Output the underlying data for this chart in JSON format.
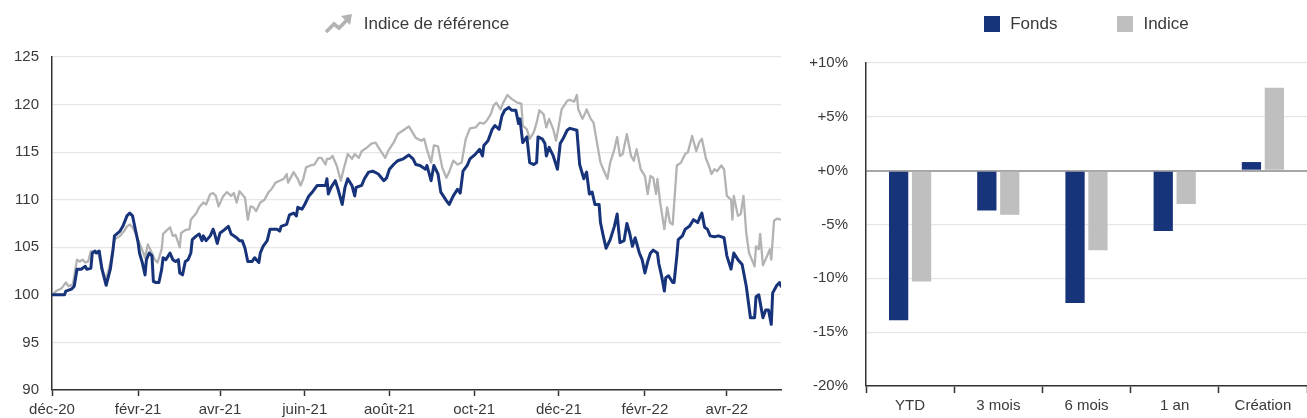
{
  "chart_data": [
    {
      "type": "line",
      "xlim": [
        "2020-12-01",
        "2022-05-10"
      ],
      "xticks": [
        {
          "value": "2020-12-01",
          "label": "déc-20"
        },
        {
          "value": "2021-02-01",
          "label": "févr-21"
        },
        {
          "value": "2021-04-01",
          "label": "avr-21"
        },
        {
          "value": "2021-06-01",
          "label": "juin-21"
        },
        {
          "value": "2021-08-01",
          "label": "août-21"
        },
        {
          "value": "2021-10-01",
          "label": "oct-21"
        },
        {
          "value": "2021-12-01",
          "label": "déc-21"
        },
        {
          "value": "2022-02-01",
          "label": "févr-22"
        },
        {
          "value": "2022-04-01",
          "label": "avr-22"
        }
      ],
      "ylim": [
        90,
        125
      ],
      "yticks": [
        90,
        95,
        100,
        105,
        110,
        115,
        120,
        125
      ],
      "grid": "y",
      "legend": "top",
      "series": [
        {
          "color": "#17337a",
          "x": [
            "2020-12-01",
            "2020-12-10",
            "2020-12-11",
            "2020-12-15",
            "2020-12-17",
            "2020-12-19",
            "2020-12-22",
            "2020-12-25",
            "2020-12-26",
            "2020-12-29",
            "2020-12-30",
            "2021-01-01",
            "2021-01-02",
            "2021-01-04",
            "2021-01-06",
            "2021-01-09",
            "2021-01-12",
            "2021-01-14",
            "2021-01-15",
            "2021-01-19",
            "2021-01-21",
            "2021-01-24",
            "2021-01-26",
            "2021-01-28",
            "2021-01-30",
            "2021-02-01",
            "2021-02-02",
            "2021-02-04",
            "2021-02-06",
            "2021-02-07",
            "2021-02-09",
            "2021-02-11",
            "2021-02-12",
            "2021-02-14",
            "2021-02-16",
            "2021-02-18",
            "2021-02-19",
            "2021-02-21",
            "2021-02-24",
            "2021-02-26",
            "2021-02-28",
            "2021-03-02",
            "2021-03-03",
            "2021-03-05",
            "2021-03-07",
            "2021-03-09",
            "2021-03-11",
            "2021-03-12",
            "2021-03-15",
            "2021-03-17",
            "2021-03-19",
            "2021-03-20",
            "2021-03-22",
            "2021-03-25",
            "2021-03-27",
            "2021-03-28",
            "2021-03-30",
            "2021-04-01",
            "2021-04-03",
            "2021-04-07",
            "2021-04-09",
            "2021-04-13",
            "2021-04-15",
            "2021-04-17",
            "2021-04-19",
            "2021-04-21",
            "2021-04-24",
            "2021-04-26",
            "2021-04-29",
            "2021-04-30",
            "2021-05-02",
            "2021-05-05",
            "2021-05-07",
            "2021-05-12",
            "2021-05-14",
            "2021-05-15",
            "2021-05-19",
            "2021-05-21",
            "2021-05-24",
            "2021-05-26",
            "2021-05-27",
            "2021-05-30",
            "2021-06-01",
            "2021-06-04",
            "2021-06-07",
            "2021-06-10",
            "2021-06-13",
            "2021-06-16",
            "2021-06-17",
            "2021-06-18",
            "2021-06-20",
            "2021-06-23",
            "2021-06-25",
            "2021-06-28",
            "2021-06-30",
            "2021-07-02",
            "2021-07-05",
            "2021-07-07",
            "2021-07-08",
            "2021-07-12",
            "2021-07-14",
            "2021-07-17",
            "2021-07-20",
            "2021-07-24",
            "2021-07-28",
            "2021-07-30",
            "2021-08-01",
            "2021-08-04",
            "2021-08-07",
            "2021-08-11",
            "2021-08-15",
            "2021-08-18",
            "2021-08-20",
            "2021-08-23",
            "2021-08-27",
            "2021-08-28",
            "2021-08-31",
            "2021-09-02",
            "2021-09-05",
            "2021-09-07",
            "2021-09-11",
            "2021-09-13",
            "2021-09-16",
            "2021-09-19",
            "2021-09-21",
            "2021-09-23",
            "2021-09-26",
            "2021-09-28",
            "2021-10-02",
            "2021-10-05",
            "2021-10-07",
            "2021-10-08",
            "2021-10-11",
            "2021-10-14",
            "2021-10-16",
            "2021-10-19",
            "2021-10-21",
            "2021-10-23",
            "2021-10-26",
            "2021-10-28",
            "2021-10-31",
            "2021-11-02",
            "2021-11-03",
            "2021-11-05",
            "2021-11-08",
            "2021-11-10",
            "2021-11-13",
            "2021-11-15",
            "2021-11-16",
            "2021-11-19",
            "2021-11-21",
            "2021-11-22",
            "2021-11-24",
            "2021-11-27",
            "2021-11-30",
            "2021-12-02",
            "2021-12-04",
            "2021-12-07",
            "2021-12-09",
            "2021-12-14",
            "2021-12-16",
            "2021-12-19",
            "2021-12-21",
            "2021-12-23",
            "2021-12-25",
            "2021-12-27",
            "2021-12-30",
            "2021-12-31",
            "2022-01-02",
            "2022-01-04",
            "2022-01-07",
            "2022-01-10",
            "2022-01-12",
            "2022-01-13",
            "2022-01-14",
            "2022-01-17",
            "2022-01-19",
            "2022-01-21",
            "2022-01-23",
            "2022-01-25",
            "2022-01-28",
            "2022-01-30",
            "2022-02-01",
            "2022-02-03",
            "2022-02-05",
            "2022-02-07",
            "2022-02-10",
            "2022-02-11",
            "2022-02-13",
            "2022-02-15",
            "2022-02-16",
            "2022-02-18",
            "2022-02-21",
            "2022-02-22",
            "2022-02-24",
            "2022-02-25",
            "2022-02-28",
            "2022-03-02",
            "2022-03-05",
            "2022-03-08",
            "2022-03-11",
            "2022-03-13",
            "2022-03-14",
            "2022-03-16",
            "2022-03-18",
            "2022-03-20",
            "2022-03-23",
            "2022-03-26",
            "2022-03-30",
            "2022-04-01",
            "2022-04-04",
            "2022-04-06",
            "2022-04-09",
            "2022-04-12",
            "2022-04-15",
            "2022-04-18",
            "2022-04-21",
            "2022-04-22",
            "2022-04-24",
            "2022-04-27",
            "2022-04-29",
            "2022-05-01",
            "2022-05-03",
            "2022-05-04",
            "2022-05-07",
            "2022-05-09",
            "2022-05-10"
          ],
          "values": [
            100,
            100,
            100.4,
            100.6,
            100.9,
            102.7,
            102.7,
            103.0,
            102.7,
            102.8,
            104.4,
            104.6,
            104.4,
            104.6,
            102.7,
            101.0,
            102.7,
            104.8,
            106.2,
            106.7,
            107.2,
            108.3,
            108.6,
            108.3,
            106.9,
            105.5,
            104.4,
            103.4,
            102.1,
            103.7,
            104.4,
            104.1,
            101.4,
            101.3,
            101.3,
            102.7,
            103.9,
            103.7,
            104.4,
            103.7,
            103.5,
            103.7,
            102.3,
            102.1,
            103.5,
            103.7,
            104.4,
            105.8,
            106.2,
            106.4,
            105.7,
            106.2,
            105.7,
            106.2,
            106.9,
            106.5,
            105.4,
            106.5,
            106.7,
            107.2,
            106.4,
            106.0,
            105.7,
            105.7,
            104.9,
            103.5,
            103.5,
            103.9,
            103.4,
            104.4,
            105.1,
            105.7,
            106.9,
            106.9,
            106.7,
            107.2,
            107.4,
            108.4,
            108.6,
            108.3,
            109.2,
            109.0,
            109.5,
            110.4,
            110.9,
            111.5,
            111.5,
            111.5,
            112.2,
            110.6,
            111.3,
            112.0,
            111.1,
            109.5,
            111.3,
            112.2,
            111.5,
            110.4,
            111.3,
            111.5,
            112.2,
            112.9,
            113.0,
            112.7,
            112.0,
            112.3,
            113.2,
            113.7,
            114.1,
            114.3,
            114.7,
            114.3,
            113.7,
            113.6,
            113.2,
            113.6,
            112.0,
            113.6,
            112.7,
            110.8,
            109.9,
            109.5,
            110.4,
            111.1,
            110.7,
            113.0,
            113.6,
            114.3,
            114.8,
            115.3,
            114.6,
            115.7,
            116.2,
            117.4,
            117.8,
            117.4,
            118.8,
            119.4,
            119.7,
            119.4,
            119.4,
            118.0,
            118.5,
            116.0,
            116.6,
            113.9,
            113.7,
            113.9,
            116.6,
            116.4,
            115.9,
            114.6,
            115.5,
            114.6,
            113.2,
            115.9,
            116.4,
            117.3,
            117.5,
            117.3,
            113.7,
            112.2,
            112.9,
            110.6,
            110.8,
            109.5,
            109.5,
            107.6,
            106.2,
            104.9,
            105.8,
            107.2,
            108.5,
            106.9,
            105.5,
            105.7,
            107.5,
            106.5,
            105.1,
            106.0,
            104.4,
            103.7,
            102.3,
            103.5,
            104.4,
            104.7,
            104.4,
            103.3,
            102.0,
            100.4,
            101.8,
            102.0,
            101.3,
            101.3,
            104.1,
            105.8,
            106.2,
            106.9,
            107.2,
            107.9,
            107.6,
            108.3,
            108.6,
            107.1,
            106.9,
            106.2,
            106.1,
            106.2,
            106.0,
            104.1,
            102.7,
            104.4,
            103.7,
            103.2,
            100.9,
            97.6,
            97.6,
            99.8,
            100.0,
            97.6,
            98.4,
            98.4,
            96.9,
            100.2,
            101.0,
            101.3,
            100.9
          ]
        },
        {
          "name": "Indice de référence",
          "color": "#b3b3b3",
          "x": [
            "2020-12-01",
            "2020-12-04",
            "2020-12-08",
            "2020-12-11",
            "2020-12-13",
            "2020-12-16",
            "2020-12-19",
            "2020-12-21",
            "2020-12-23",
            "2020-12-25",
            "2020-12-27",
            "2020-12-29",
            "2021-01-01",
            "2021-01-03",
            "2021-01-06",
            "2021-01-09",
            "2021-01-12",
            "2021-01-15",
            "2021-01-19",
            "2021-01-22",
            "2021-01-24",
            "2021-01-26",
            "2021-01-28",
            "2021-01-31",
            "2021-02-01",
            "2021-02-03",
            "2021-02-06",
            "2021-02-08",
            "2021-02-11",
            "2021-02-13",
            "2021-02-15",
            "2021-02-18",
            "2021-02-19",
            "2021-02-21",
            "2021-02-24",
            "2021-02-26",
            "2021-02-28",
            "2021-03-03",
            "2021-03-04",
            "2021-03-07",
            "2021-03-10",
            "2021-03-11",
            "2021-03-15",
            "2021-03-17",
            "2021-03-20",
            "2021-03-22",
            "2021-03-25",
            "2021-03-27",
            "2021-03-29",
            "2021-03-31",
            "2021-04-03",
            "2021-04-06",
            "2021-04-09",
            "2021-04-11",
            "2021-04-13",
            "2021-04-15",
            "2021-04-19",
            "2021-04-21",
            "2021-04-23",
            "2021-04-25",
            "2021-04-27",
            "2021-04-30",
            "2021-05-03",
            "2021-05-06",
            "2021-05-08",
            "2021-05-11",
            "2021-05-14",
            "2021-05-17",
            "2021-05-19",
            "2021-05-20",
            "2021-05-24",
            "2021-05-27",
            "2021-05-29",
            "2021-05-31",
            "2021-06-02",
            "2021-06-05",
            "2021-06-08",
            "2021-06-11",
            "2021-06-13",
            "2021-06-16",
            "2021-06-17",
            "2021-06-19",
            "2021-06-21",
            "2021-06-24",
            "2021-06-27",
            "2021-06-29",
            "2021-07-02",
            "2021-07-05",
            "2021-07-07",
            "2021-07-10",
            "2021-07-12",
            "2021-07-16",
            "2021-07-19",
            "2021-07-22",
            "2021-07-25",
            "2021-07-29",
            "2021-07-31",
            "2021-08-04",
            "2021-08-07",
            "2021-08-11",
            "2021-08-15",
            "2021-08-20",
            "2021-08-24",
            "2021-08-26",
            "2021-08-28",
            "2021-08-31",
            "2021-09-02",
            "2021-09-05",
            "2021-09-08",
            "2021-09-11",
            "2021-09-13",
            "2021-09-16",
            "2021-09-19",
            "2021-09-22",
            "2021-09-25",
            "2021-09-28",
            "2021-10-02",
            "2021-10-05",
            "2021-10-08",
            "2021-10-10",
            "2021-10-13",
            "2021-10-15",
            "2021-10-17",
            "2021-10-20",
            "2021-10-22",
            "2021-10-25",
            "2021-10-28",
            "2021-11-01",
            "2021-11-04",
            "2021-11-05",
            "2021-11-08",
            "2021-11-10",
            "2021-11-13",
            "2021-11-15",
            "2021-11-17",
            "2021-11-20",
            "2021-11-22",
            "2021-11-24",
            "2021-11-27",
            "2021-11-29",
            "2021-12-01",
            "2021-12-03",
            "2021-12-07",
            "2021-12-09",
            "2021-12-12",
            "2021-12-14",
            "2021-12-15",
            "2021-12-18",
            "2021-12-20",
            "2021-12-21",
            "2021-12-24",
            "2021-12-26",
            "2021-12-28",
            "2021-12-31",
            "2022-01-02",
            "2022-01-05",
            "2022-01-07",
            "2022-01-10",
            "2022-01-12",
            "2022-01-14",
            "2022-01-16",
            "2022-01-19",
            "2022-01-22",
            "2022-01-24",
            "2022-01-26",
            "2022-01-29",
            "2022-02-01",
            "2022-02-03",
            "2022-02-05",
            "2022-02-07",
            "2022-02-09",
            "2022-02-10",
            "2022-02-12",
            "2022-02-15",
            "2022-02-17",
            "2022-02-19",
            "2022-02-21",
            "2022-02-24",
            "2022-02-27",
            "2022-03-02",
            "2022-03-04",
            "2022-03-07",
            "2022-03-10",
            "2022-03-12",
            "2022-03-14",
            "2022-03-17",
            "2022-03-19",
            "2022-03-21",
            "2022-03-23",
            "2022-03-25",
            "2022-03-28",
            "2022-03-30",
            "2022-04-01",
            "2022-04-04",
            "2022-04-05",
            "2022-04-06",
            "2022-04-09",
            "2022-04-11",
            "2022-04-13",
            "2022-04-15",
            "2022-04-17",
            "2022-04-21",
            "2022-04-22",
            "2022-04-24",
            "2022-04-25",
            "2022-04-27",
            "2022-04-30",
            "2022-05-02",
            "2022-05-03",
            "2022-05-05",
            "2022-05-07",
            "2022-05-10"
          ],
          "values": [
            100.0,
            100.4,
            100.7,
            101.3,
            100.9,
            101.1,
            103.7,
            103.5,
            103.7,
            103.4,
            103.5,
            104.6,
            104.4,
            104.6,
            102.7,
            101.6,
            103.4,
            105.8,
            106.2,
            106.7,
            107.2,
            107.4,
            107.1,
            106.2,
            105.8,
            105.1,
            103.9,
            105.3,
            104.4,
            103.7,
            103.4,
            104.8,
            106.4,
            106.7,
            107.1,
            106.2,
            106.3,
            105.0,
            106.5,
            106.8,
            106.9,
            107.9,
            108.6,
            109.2,
            109.7,
            109.5,
            110.6,
            110.7,
            110.4,
            109.3,
            110.3,
            110.8,
            110.4,
            110.7,
            109.7,
            110.9,
            110.2,
            107.9,
            109.3,
            109.2,
            108.8,
            109.7,
            110.0,
            110.8,
            111.1,
            111.8,
            112.0,
            112.2,
            112.7,
            111.8,
            112.9,
            112.2,
            111.5,
            112.2,
            113.4,
            113.6,
            113.7,
            114.4,
            114.4,
            113.7,
            114.3,
            114.3,
            114.6,
            113.6,
            112.0,
            113.2,
            114.8,
            114.3,
            114.8,
            114.4,
            115.1,
            115.5,
            115.9,
            116.0,
            115.3,
            114.4,
            115.1,
            116.0,
            116.9,
            117.3,
            117.7,
            116.5,
            116.2,
            116.4,
            115.3,
            113.9,
            115.7,
            115.6,
            113.4,
            112.3,
            112.9,
            114.1,
            113.7,
            113.9,
            116.4,
            117.5,
            117.6,
            118.1,
            118.0,
            118.3,
            119.0,
            119.9,
            120.2,
            119.5,
            120.2,
            121.0,
            120.6,
            120.2,
            120.1,
            117.8,
            117.4,
            116.4,
            117.1,
            118.1,
            119.4,
            119.0,
            117.6,
            118.5,
            117.4,
            116.2,
            117.8,
            119.5,
            120.4,
            120.5,
            120.3,
            121.0,
            119.5,
            118.5,
            119.1,
            119.5,
            118.5,
            118.1,
            116.4,
            113.9,
            113.2,
            112.2,
            113.9,
            115.3,
            116.6,
            114.6,
            114.8,
            116.9,
            114.6,
            114.1,
            115.3,
            113.2,
            112.5,
            110.6,
            112.5,
            112.3,
            110.6,
            112.2,
            109.7,
            106.9,
            109.2,
            107.6,
            107.4,
            113.6,
            113.9,
            114.8,
            115.0,
            116.7,
            115.1,
            116.0,
            116.4,
            114.3,
            113.6,
            112.7,
            113.2,
            113.0,
            113.6,
            113.2,
            110.4,
            110.0,
            107.9,
            110.4,
            108.3,
            108.5,
            110.4,
            106.5,
            104.4,
            103.0,
            105.1,
            104.8,
            106.4,
            103.1,
            104.1,
            104.8,
            103.7,
            107.8,
            108.0,
            107.9
          ]
        }
      ]
    },
    {
      "type": "bar",
      "categories": [
        "YTD",
        "3 mois",
        "6 mois",
        "1 an",
        "Création"
      ],
      "series": [
        {
          "name": "Fonds",
          "color": "#17337a",
          "values": [
            -13.9,
            -3.7,
            -12.3,
            -5.6,
            0.8
          ]
        },
        {
          "name": "Indice",
          "color": "#bfbfbf",
          "values": [
            -10.3,
            -4.1,
            -7.4,
            -3.1,
            7.7
          ]
        }
      ],
      "ylim": [
        -20,
        10
      ],
      "yticks": [
        {
          "value": -20,
          "label": "-20%"
        },
        {
          "value": -15,
          "label": "-15%"
        },
        {
          "value": -10,
          "label": "-10%"
        },
        {
          "value": -5,
          "label": "-5%"
        },
        {
          "value": 0,
          "label": "+0%"
        },
        {
          "value": 5,
          "label": "+5%"
        },
        {
          "value": 10,
          "label": "+10%"
        }
      ],
      "grid": "y",
      "legend": "top"
    }
  ]
}
